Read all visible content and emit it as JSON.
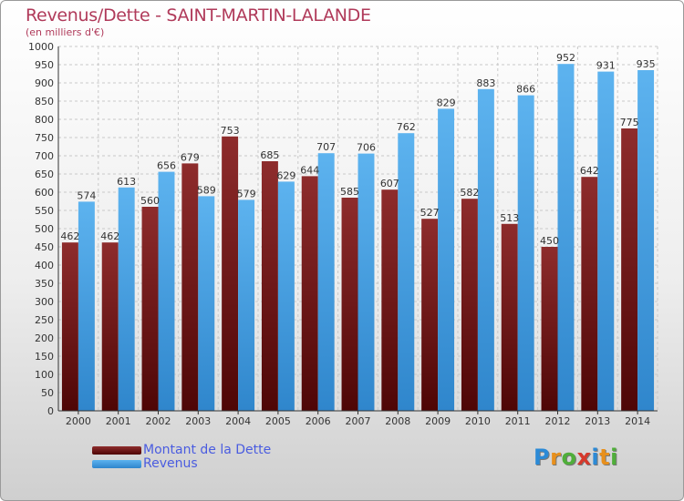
{
  "header": {
    "title": "Revenus/Dette - SAINT-MARTIN-LALANDE",
    "subtitle": "(en milliers d'€)"
  },
  "legend": [
    {
      "label": "Montant de la Dette",
      "color": "#7a1c1c"
    },
    {
      "label": "Revenus",
      "color": "#4aa3e6"
    }
  ],
  "logo": {
    "text": "Proxiti",
    "letters": [
      {
        "char": "P",
        "color": "#2c8ad6"
      },
      {
        "char": "r",
        "color": "#e8901c"
      },
      {
        "char": "o",
        "color": "#4fae3a"
      },
      {
        "char": "x",
        "color": "#d6392c"
      },
      {
        "char": "i",
        "color": "#2c8ad6"
      },
      {
        "char": "t",
        "color": "#e8901c"
      },
      {
        "char": "i",
        "color": "#4fae3a"
      }
    ]
  },
  "chart_data": {
    "type": "bar",
    "title": "Revenus/Dette - SAINT-MARTIN-LALANDE",
    "ylabel": "(en milliers d'€)",
    "xlabel": "",
    "ylim": [
      0,
      1000
    ],
    "ytick_step": 50,
    "grid": true,
    "legend_position": "bottom-left",
    "categories": [
      "2000",
      "2001",
      "2002",
      "2003",
      "2004",
      "2005",
      "2006",
      "2007",
      "2008",
      "2009",
      "2010",
      "2011",
      "2012",
      "2013",
      "2014"
    ],
    "series": [
      {
        "name": "Montant de la Dette",
        "color": "#7a1c1c",
        "values": [
          462,
          462,
          560,
          679,
          753,
          685,
          644,
          585,
          607,
          527,
          582,
          513,
          450,
          642,
          775
        ]
      },
      {
        "name": "Revenus",
        "color": "#4aa3e6",
        "values": [
          574,
          613,
          656,
          589,
          579,
          629,
          707,
          706,
          762,
          829,
          883,
          866,
          952,
          931,
          935
        ]
      }
    ]
  }
}
